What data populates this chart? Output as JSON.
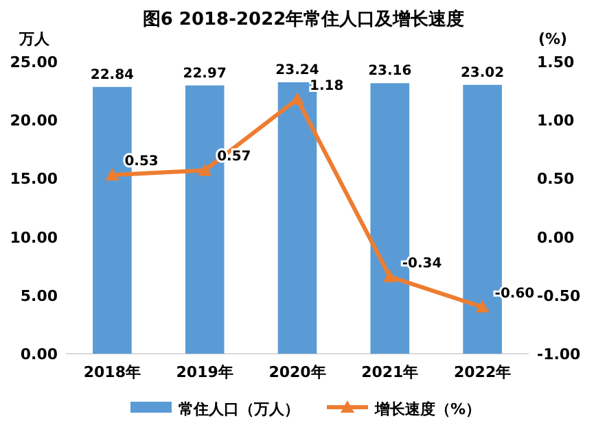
{
  "chart_data": {
    "type": "bar",
    "title": "图6  2018-2022年常住人口及增长速度",
    "ylabel": "万人",
    "y2label": "(%)",
    "categories": [
      "2018年",
      "2019年",
      "2020年",
      "2021年",
      "2022年"
    ],
    "series": [
      {
        "name": "常住人口（万人）",
        "color": "#5b9bd5",
        "values": [
          22.84,
          22.97,
          23.24,
          23.16,
          23.02
        ],
        "value_labels": [
          "22.84",
          "22.97",
          "23.24",
          "23.16",
          "23.02"
        ]
      },
      {
        "name": "增长速度（%）",
        "type": "line",
        "axis": "y2",
        "color": "#ed7d31",
        "marker": "triangle",
        "values": [
          0.53,
          0.57,
          1.18,
          -0.34,
          -0.6
        ],
        "value_labels": [
          "0.53",
          "0.57",
          "1.18",
          "-0.34",
          "-0.60"
        ]
      }
    ],
    "ylim": [
      0,
      25
    ],
    "yticks": [
      {
        "value": 0,
        "label": "0.00"
      },
      {
        "value": 5,
        "label": "5.00"
      },
      {
        "value": 10,
        "label": "10.00"
      },
      {
        "value": 15,
        "label": "15.00"
      },
      {
        "value": 20,
        "label": "20.00"
      },
      {
        "value": 25,
        "label": "25.00"
      }
    ],
    "y2lim": [
      -1,
      1.5
    ],
    "y2ticks": [
      {
        "value": -1,
        "label": "-1.00"
      },
      {
        "value": -0.5,
        "label": "-0.50"
      },
      {
        "value": 0,
        "label": "0.00"
      },
      {
        "value": 0.5,
        "label": "0.50"
      },
      {
        "value": 1,
        "label": "1.00"
      },
      {
        "value": 1.5,
        "label": "1.50"
      }
    ],
    "legend": "bottom"
  }
}
